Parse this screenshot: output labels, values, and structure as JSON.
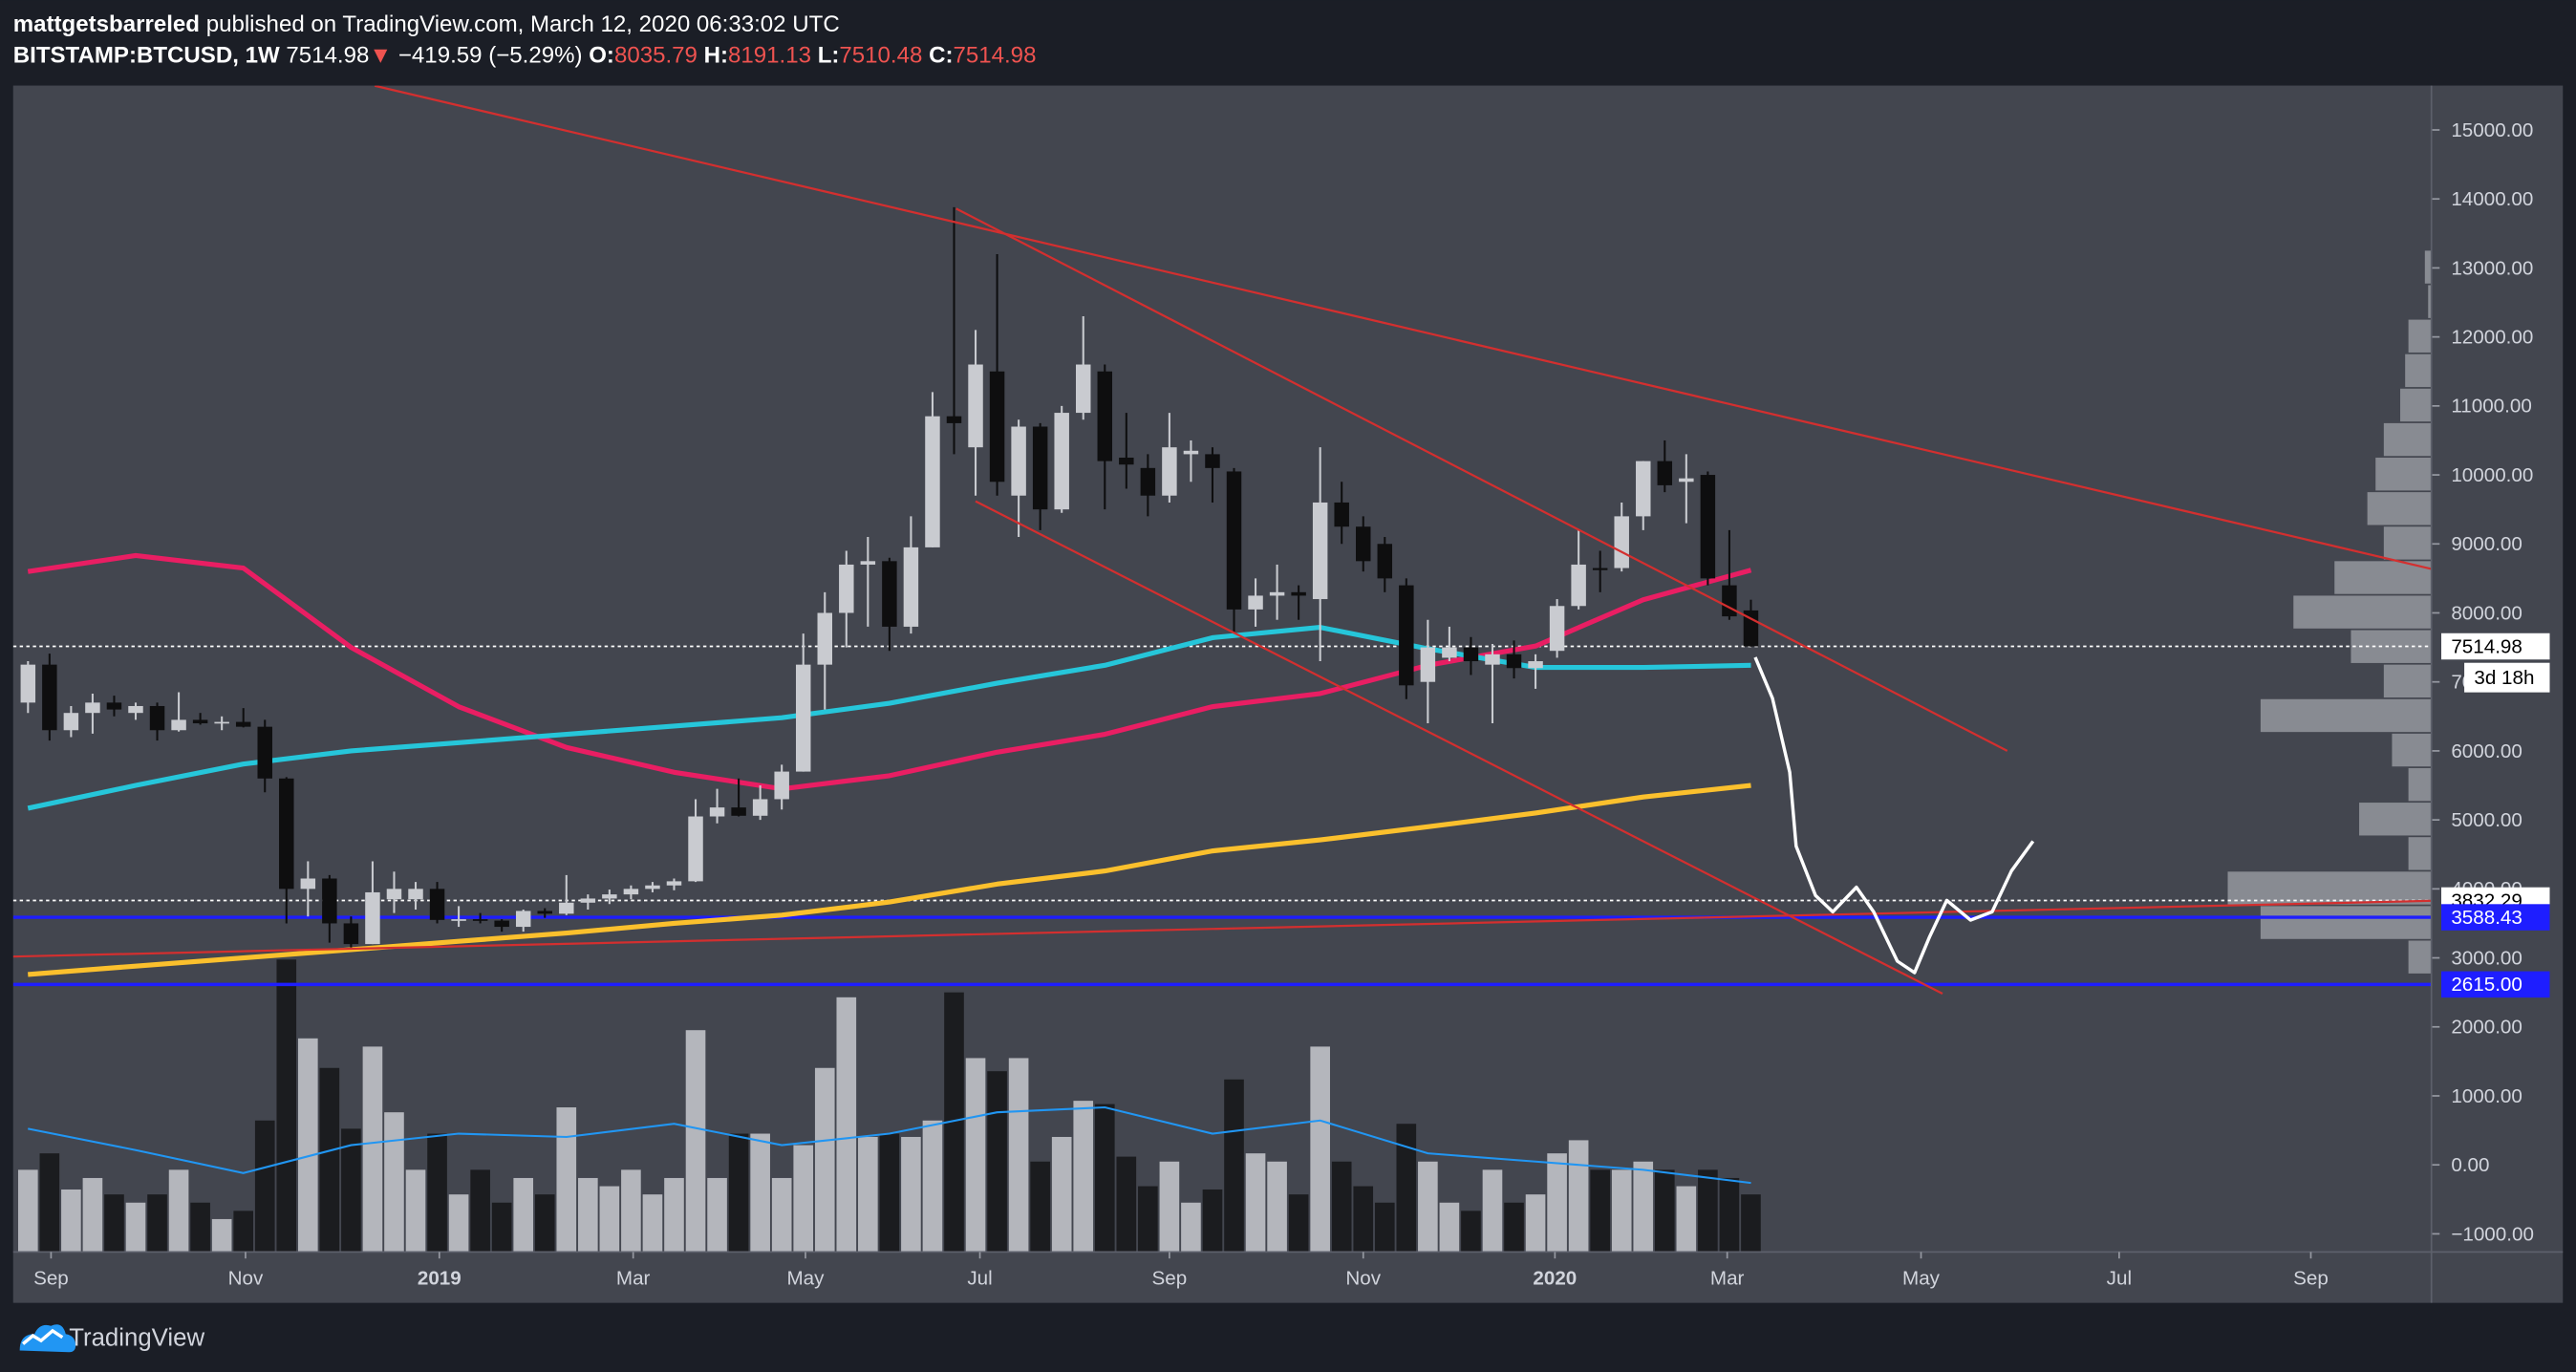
{
  "header": {
    "author": "mattgetsbarreled",
    "published": "published on TradingView.com, March 12, 2020 06:33:02 UTC",
    "symbol": "BITSTAMP:BTCUSD, 1W",
    "last": "7514.98",
    "arrow": "▼",
    "change": "−419.59 (−5.29%)",
    "ohlc": [
      {
        "key": "O:",
        "value": "8035.79"
      },
      {
        "key": "H:",
        "value": "8191.13"
      },
      {
        "key": "L:",
        "value": "7510.48"
      },
      {
        "key": "C:",
        "value": "7514.98"
      }
    ]
  },
  "footer": {
    "brand": "TradingView"
  },
  "chart_data": {
    "type": "candlestick",
    "grid": false,
    "up_color": "#c9cbd0",
    "down_color": "#0e0e0f",
    "xlim": [
      -0.69,
      111.6
    ],
    "xticks": [
      {
        "value": 1.07,
        "label": "Sep"
      },
      {
        "value": 10.1,
        "label": "Nov"
      },
      {
        "value": 19.1,
        "label": "2019"
      },
      {
        "value": 28.1,
        "label": "Mar"
      },
      {
        "value": 36.1,
        "label": "May"
      },
      {
        "value": 44.2,
        "label": "Jul"
      },
      {
        "value": 53.0,
        "label": "Sep"
      },
      {
        "value": 62.0,
        "label": "Nov"
      },
      {
        "value": 70.9,
        "label": "2020"
      },
      {
        "value": 78.9,
        "label": "Mar"
      },
      {
        "value": 87.9,
        "label": "May"
      },
      {
        "value": 97.1,
        "label": "Jul"
      },
      {
        "value": 106.0,
        "label": "Sep"
      }
    ],
    "ylim": [
      -1262,
      15643
    ],
    "yticks": [
      {
        "value": -1000,
        "label": "−1000.00"
      },
      {
        "value": 0,
        "label": "0.00"
      },
      {
        "value": 1000,
        "label": "1000.00"
      },
      {
        "value": 2000,
        "label": "2000.00"
      },
      {
        "value": 3000,
        "label": "3000.00"
      },
      {
        "value": 4000,
        "label": "4000.00"
      },
      {
        "value": 5000,
        "label": "5000.00"
      },
      {
        "value": 6000,
        "label": "6000.00"
      },
      {
        "value": 7000,
        "label": "7000.00"
      },
      {
        "value": 8000,
        "label": "8000.00"
      },
      {
        "value": 9000,
        "label": "9000.00"
      },
      {
        "value": 10000,
        "label": "10000.00"
      },
      {
        "value": 11000,
        "label": "11000.00"
      },
      {
        "value": 12000,
        "label": "12000.00"
      },
      {
        "value": 13000,
        "label": "13000.00"
      },
      {
        "value": 14000,
        "label": "14000.00"
      },
      {
        "value": 15000,
        "label": "15000.00"
      }
    ],
    "ohlc": [
      [
        6700,
        7300,
        6550,
        7250
      ],
      [
        7250,
        7410,
        6150,
        6300
      ],
      [
        6300,
        6650,
        6200,
        6550
      ],
      [
        6550,
        6830,
        6250,
        6700
      ],
      [
        6700,
        6800,
        6500,
        6600
      ],
      [
        6550,
        6700,
        6450,
        6650
      ],
      [
        6650,
        6700,
        6150,
        6300
      ],
      [
        6300,
        6850,
        6280,
        6450
      ],
      [
        6450,
        6550,
        6380,
        6400
      ],
      [
        6400,
        6500,
        6300,
        6420
      ],
      [
        6420,
        6620,
        6340,
        6350
      ],
      [
        6350,
        6450,
        5400,
        5600
      ],
      [
        5600,
        5620,
        3500,
        4000
      ],
      [
        4000,
        4400,
        3600,
        4150
      ],
      [
        4150,
        4200,
        3220,
        3500
      ],
      [
        3500,
        3600,
        3150,
        3200
      ],
      [
        3200,
        4400,
        3200,
        3950
      ],
      [
        3850,
        4250,
        3650,
        4000
      ],
      [
        3850,
        4100,
        3700,
        4000
      ],
      [
        4000,
        4100,
        3500,
        3550
      ],
      [
        3550,
        3750,
        3450,
        3560
      ],
      [
        3560,
        3650,
        3500,
        3540
      ],
      [
        3540,
        3560,
        3380,
        3450
      ],
      [
        3450,
        3700,
        3380,
        3680
      ],
      [
        3680,
        3720,
        3580,
        3640
      ],
      [
        3640,
        4200,
        3620,
        3800
      ],
      [
        3800,
        3920,
        3700,
        3860
      ],
      [
        3860,
        3990,
        3780,
        3920
      ],
      [
        3920,
        4050,
        3850,
        4000
      ],
      [
        4000,
        4100,
        3950,
        4050
      ],
      [
        4050,
        4150,
        3980,
        4110
      ],
      [
        4110,
        5300,
        4100,
        5050
      ],
      [
        5050,
        5450,
        4950,
        5180
      ],
      [
        5180,
        5600,
        5050,
        5060
      ],
      [
        5060,
        5500,
        5000,
        5300
      ],
      [
        5300,
        5800,
        5150,
        5700
      ],
      [
        5700,
        7700,
        5700,
        7250
      ],
      [
        7250,
        8300,
        6600,
        8000
      ],
      [
        8000,
        8900,
        7500,
        8700
      ],
      [
        8700,
        9100,
        7800,
        8750
      ],
      [
        8750,
        8800,
        7450,
        7800
      ],
      [
        7800,
        9400,
        7700,
        8950
      ],
      [
        8950,
        11200,
        8950,
        10850
      ],
      [
        10850,
        13880,
        10300,
        10750
      ],
      [
        10400,
        12100,
        9700,
        11600
      ],
      [
        11500,
        13200,
        9700,
        9900
      ],
      [
        9700,
        10800,
        9100,
        10700
      ],
      [
        10700,
        10750,
        9200,
        9500
      ],
      [
        9500,
        11000,
        9450,
        10900
      ],
      [
        10900,
        12300,
        10800,
        11600
      ],
      [
        11500,
        11600,
        9500,
        10200
      ],
      [
        10250,
        10900,
        9800,
        10150
      ],
      [
        10100,
        10300,
        9400,
        9700
      ],
      [
        9700,
        10900,
        9600,
        10400
      ],
      [
        10300,
        10500,
        9900,
        10350
      ],
      [
        10300,
        10400,
        9600,
        10100
      ],
      [
        10050,
        10100,
        7700,
        8050
      ],
      [
        8050,
        8500,
        7800,
        8250
      ],
      [
        8250,
        8700,
        7900,
        8300
      ],
      [
        8300,
        8400,
        7900,
        8250
      ],
      [
        8200,
        10400,
        7300,
        9600
      ],
      [
        9600,
        9900,
        9000,
        9250
      ],
      [
        9250,
        9400,
        8600,
        8750
      ],
      [
        9000,
        9100,
        8300,
        8500
      ],
      [
        8400,
        8500,
        6750,
        6950
      ],
      [
        7000,
        7900,
        6400,
        7500
      ],
      [
        7350,
        7800,
        7300,
        7500
      ],
      [
        7500,
        7650,
        7100,
        7300
      ],
      [
        7250,
        7550,
        6400,
        7400
      ],
      [
        7400,
        7600,
        7050,
        7200
      ],
      [
        7200,
        7400,
        6900,
        7300
      ],
      [
        7450,
        8200,
        7350,
        8100
      ],
      [
        8100,
        9200,
        8050,
        8700
      ],
      [
        8650,
        8900,
        8300,
        8620
      ],
      [
        8650,
        9600,
        8600,
        9400
      ],
      [
        9400,
        10200,
        9200,
        10200
      ],
      [
        10200,
        10500,
        9750,
        9850
      ],
      [
        9900,
        10300,
        9300,
        9950
      ],
      [
        10000,
        10050,
        8400,
        8500
      ],
      [
        8400,
        9200,
        7900,
        7950
      ],
      [
        8035.79,
        8191.13,
        7510.48,
        7514.98
      ]
    ],
    "volume": {
      "ylim": [
        0,
        180
      ],
      "up_color": "#b4b6bc",
      "down_color": "#1b1c1f",
      "values": [
        50,
        60,
        38,
        45,
        35,
        30,
        35,
        50,
        30,
        20,
        25,
        80,
        178,
        130,
        112,
        75,
        125,
        85,
        50,
        72,
        35,
        50,
        30,
        45,
        35,
        88,
        45,
        40,
        50,
        35,
        45,
        135,
        45,
        72,
        72,
        45,
        65,
        112,
        155,
        70,
        72,
        70,
        80,
        158,
        118,
        110,
        118,
        55,
        70,
        92,
        90,
        58,
        40,
        55,
        30,
        38,
        105,
        60,
        55,
        35,
        125,
        55,
        40,
        30,
        78,
        55,
        30,
        25,
        50,
        30,
        35,
        60,
        68,
        50,
        50,
        55,
        50,
        40,
        50,
        45,
        35
      ],
      "ma": {
        "color": "#2196f3",
        "x": [
          0,
          5,
          10,
          15,
          20,
          25,
          30,
          35,
          40,
          45,
          50,
          55,
          60,
          65,
          70,
          75,
          80
        ],
        "values": [
          75,
          62,
          48,
          65,
          72,
          70,
          78,
          65,
          72,
          85,
          88,
          72,
          80,
          60,
          55,
          50,
          42
        ]
      }
    },
    "series": [
      {
        "color": "#e91e63",
        "x": [
          0,
          5,
          10,
          15,
          20,
          25,
          30,
          35,
          40,
          45,
          50,
          55,
          60,
          65,
          70,
          75,
          80
        ],
        "values": [
          8600,
          8830,
          8650,
          7500,
          6640,
          6050,
          5690,
          5450,
          5640,
          5980,
          6240,
          6640,
          6830,
          7240,
          7520,
          8190,
          8620
        ]
      },
      {
        "color": "#26c6da",
        "x": [
          0,
          5,
          10,
          15,
          20,
          25,
          30,
          35,
          40,
          45,
          50,
          55,
          60,
          65,
          70,
          75,
          80
        ],
        "values": [
          5170,
          5500,
          5810,
          6000,
          6120,
          6240,
          6360,
          6480,
          6690,
          6980,
          7240,
          7640,
          7790,
          7480,
          7210,
          7210,
          7240
        ]
      },
      {
        "color": "#fbc02d",
        "x": [
          0,
          5,
          10,
          15,
          20,
          25,
          30,
          35,
          40,
          45,
          50,
          55,
          60,
          65,
          70,
          75,
          80
        ],
        "values": [
          2760,
          2880,
          3000,
          3120,
          3240,
          3360,
          3500,
          3620,
          3810,
          4070,
          4260,
          4550,
          4710,
          4900,
          5100,
          5330,
          5500
        ]
      }
    ],
    "drawings": [
      {
        "color": "#d32f2f",
        "x": [
          16.1,
          112.1
        ],
        "y": [
          15640,
          8600
        ]
      },
      {
        "color": "#d32f2f",
        "x": [
          43.1,
          91.9
        ],
        "y": [
          13860,
          6000
        ]
      },
      {
        "color": "#d32f2f",
        "x": [
          44.0,
          88.9
        ],
        "y": [
          9620,
          2480
        ]
      },
      {
        "color": "#d32f2f",
        "x": [
          -0.69,
          112.1
        ],
        "y": [
          3020,
          3830
        ]
      },
      {
        "color": "#ffffff",
        "x": [
          80.2,
          81.0,
          81.8,
          82.1,
          83.0,
          83.8,
          84.9,
          85.7,
          86.8,
          87.6,
          88.3,
          89.1,
          90.2,
          91.2,
          92.1,
          93.1
        ],
        "y": [
          7357,
          6762,
          5690,
          4619,
          3905,
          3667,
          4024,
          3667,
          2952,
          2786,
          3310,
          3833,
          3548,
          3667,
          4262,
          4690
        ]
      }
    ],
    "price_levels": [
      {
        "value": 7514.98,
        "color": "#ffffff",
        "text_color": "#000000",
        "dashed": true,
        "countdown": "3d 18h"
      },
      {
        "value": 3832.29,
        "color": "#ffffff",
        "text_color": "#000000",
        "dashed": true
      },
      {
        "value": 3588.43,
        "color": "#1e1eff",
        "text_color": "#ffffff",
        "dashed": false
      },
      {
        "value": 2615,
        "label": "2615.00",
        "color": "#1e1eff",
        "text_color": "#ffffff",
        "dashed": false
      }
    ],
    "volume_profile": {
      "color": "#9a9ca3",
      "xlim": [
        0,
        300
      ],
      "band": 500,
      "prices": [
        3000,
        3500,
        4000,
        4500,
        5000,
        5500,
        6000,
        6500,
        7000,
        7500,
        8000,
        8500,
        9000,
        9500,
        10000,
        10500,
        11000,
        11500,
        12000,
        12500,
        13000
      ],
      "values": [
        20,
        110,
        130,
        20,
        50,
        20,
        30,
        110,
        35,
        55,
        90,
        65,
        35,
        45,
        40,
        35,
        25,
        22,
        20,
        8,
        10
      ]
    }
  }
}
